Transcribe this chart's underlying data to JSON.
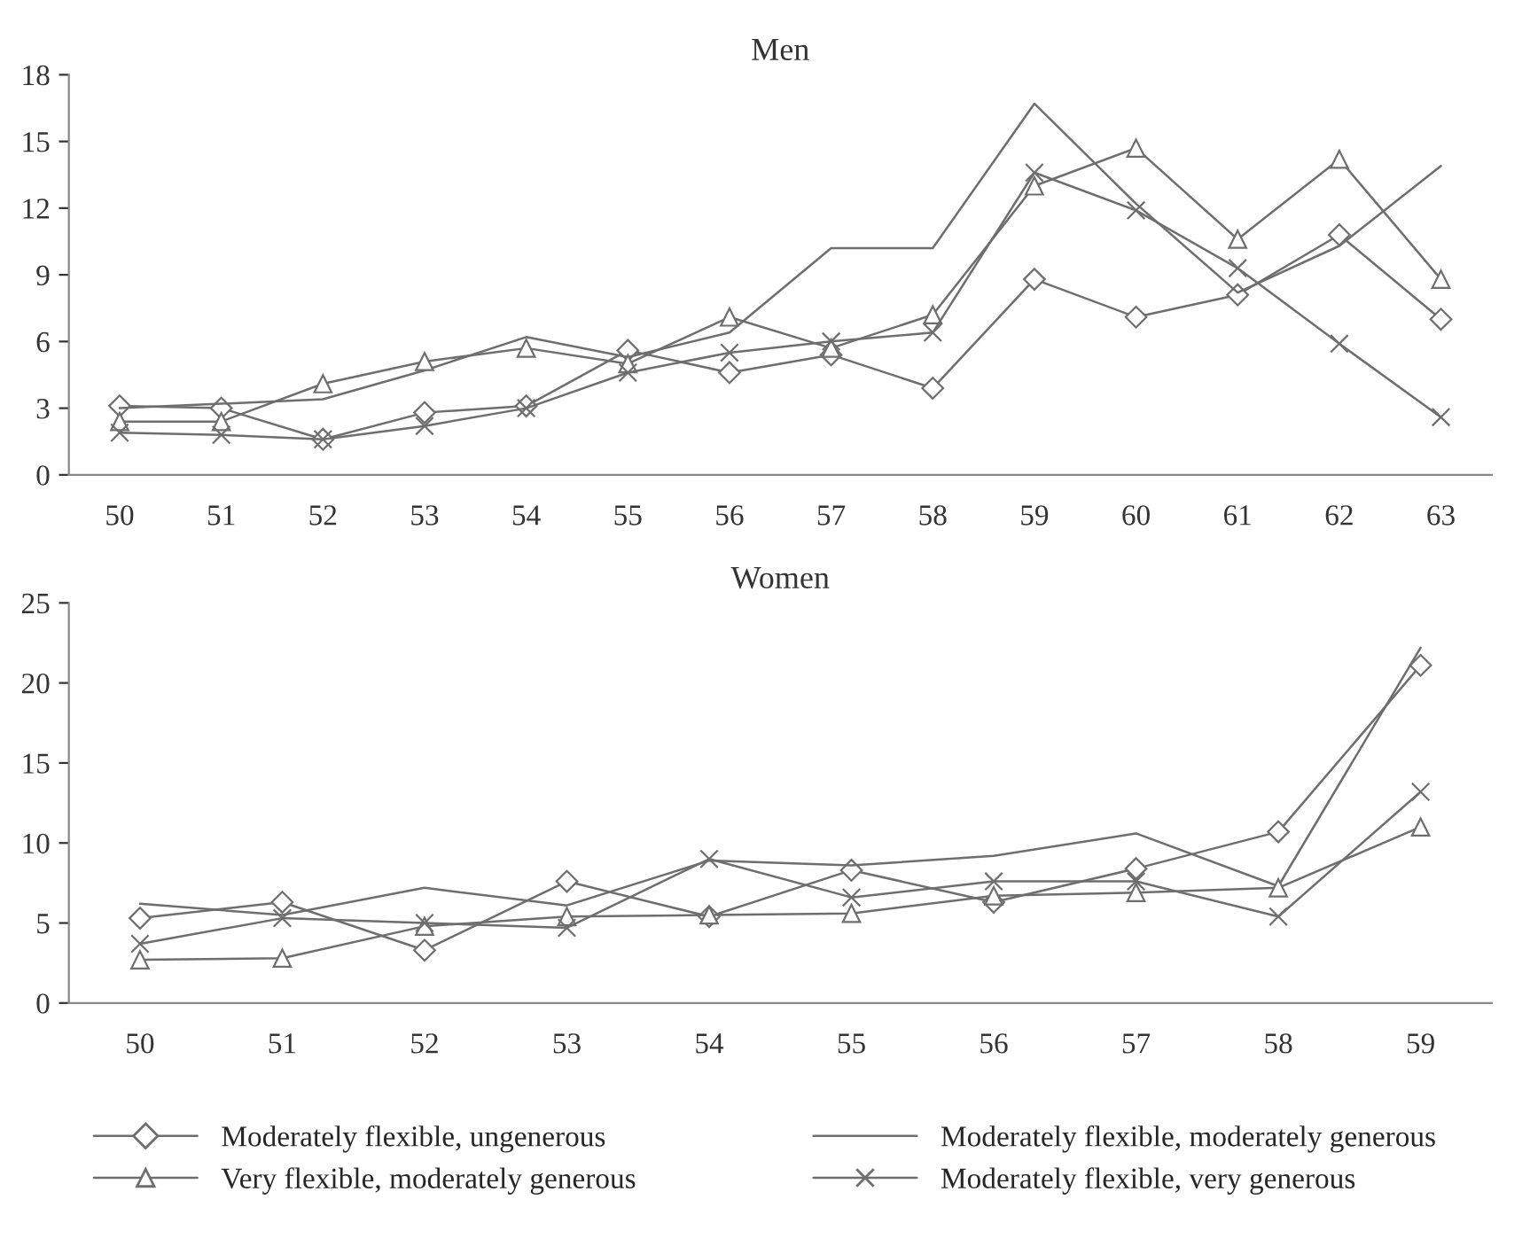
{
  "chart_data": [
    {
      "type": "line",
      "title": "Men",
      "categories": [
        "50",
        "51",
        "52",
        "53",
        "54",
        "55",
        "56",
        "57",
        "58",
        "59",
        "60",
        "61",
        "62",
        "63"
      ],
      "ylim": [
        0,
        18
      ],
      "yticks": [
        0,
        3,
        6,
        9,
        12,
        15,
        18
      ],
      "grid": false,
      "series": [
        {
          "color": "#6e6e6e",
          "marker": "diamond",
          "values": [
            3.1,
            3.0,
            1.6,
            2.8,
            3.1,
            5.6,
            4.6,
            5.4,
            3.9,
            8.8,
            7.1,
            8.1,
            10.8,
            7.0
          ]
        },
        {
          "color": "#6e6e6e",
          "marker": "none",
          "values": [
            3.0,
            3.2,
            3.4,
            4.7,
            6.2,
            5.3,
            6.4,
            10.2,
            10.2,
            16.7,
            12.2,
            8.2,
            10.3,
            13.9
          ]
        },
        {
          "color": "#6e6e6e",
          "marker": "triangle",
          "values": [
            2.4,
            2.4,
            4.1,
            5.1,
            5.7,
            5.0,
            7.1,
            5.7,
            7.2,
            13.0,
            14.7,
            10.6,
            14.2,
            8.8
          ]
        },
        {
          "color": "#6e6e6e",
          "marker": "cross",
          "values": [
            1.9,
            1.8,
            1.6,
            2.2,
            3.0,
            4.6,
            5.5,
            6.0,
            6.4,
            13.6,
            11.9,
            9.3,
            5.9,
            2.6
          ]
        }
      ]
    },
    {
      "type": "line",
      "title": "Women",
      "categories": [
        "50",
        "51",
        "52",
        "53",
        "54",
        "55",
        "56",
        "57",
        "58",
        "59"
      ],
      "ylim": [
        0,
        25
      ],
      "yticks": [
        0,
        5,
        10,
        15,
        20,
        25
      ],
      "grid": false,
      "legend": "bottom",
      "series": [
        {
          "name": "Moderately flexible, ungenerous",
          "color": "#6e6e6e",
          "marker": "diamond",
          "values": [
            5.3,
            6.3,
            3.3,
            7.6,
            5.4,
            8.3,
            6.3,
            8.4,
            10.7,
            21.1
          ]
        },
        {
          "name": "Moderately flexible, moderately generous",
          "color": "#6e6e6e",
          "marker": "none",
          "values": [
            6.2,
            5.5,
            7.2,
            6.1,
            8.9,
            8.6,
            9.2,
            10.6,
            7.3,
            22.2
          ]
        },
        {
          "name": "Very flexible, moderately generous",
          "color": "#6e6e6e",
          "marker": "triangle",
          "values": [
            2.7,
            2.8,
            4.8,
            5.4,
            5.5,
            5.6,
            6.7,
            6.9,
            7.2,
            11.0
          ]
        },
        {
          "name": "Moderately flexible, very generous",
          "color": "#6e6e6e",
          "marker": "cross",
          "values": [
            3.7,
            5.3,
            5.0,
            4.7,
            9.0,
            6.6,
            7.6,
            7.6,
            5.4,
            13.2
          ]
        }
      ]
    }
  ]
}
